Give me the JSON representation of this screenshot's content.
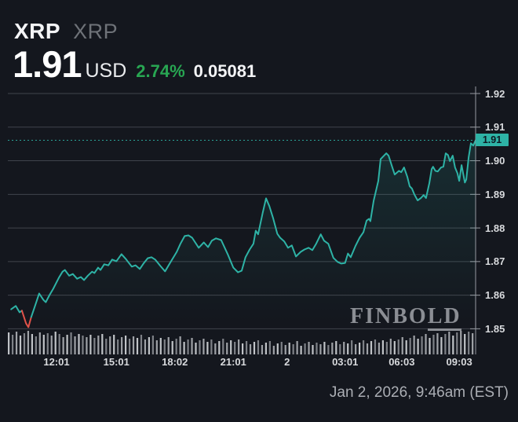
{
  "header": {
    "symbol": "XRP",
    "symbol_secondary": "XRP",
    "price": "1.91",
    "currency": "USD",
    "change_pct": "2.74%",
    "change_abs": "0.05081"
  },
  "watermark": {
    "part1": "FINBO",
    "part2": "LD"
  },
  "footer": {
    "timestamp": "Jan 2, 2026, 9:46am (EST)"
  },
  "colors": {
    "background": "#14171e",
    "gridline": "#40444c",
    "axis_line": "#969aa1",
    "tick_text": "#d8dadd",
    "up_green": "#28a652",
    "line_teal": "#2eb3a6",
    "down_red": "#e05249",
    "tag_text": "#0f1822",
    "fill_teal": "rgba(46,179,166,0.15)"
  },
  "chart_data": {
    "type": "line",
    "title": "XRP/USD 24-hour price",
    "ylim": [
      1.85,
      1.92
    ],
    "grid": true,
    "legend": "none",
    "y_ticks": [
      {
        "label": "1.92",
        "v": 1.92
      },
      {
        "label": "1.91",
        "v": 1.91
      },
      {
        "label": "1.90",
        "v": 1.9
      },
      {
        "label": "1.89",
        "v": 1.89
      },
      {
        "label": "1.88",
        "v": 1.88
      },
      {
        "label": "1.87",
        "v": 1.87
      },
      {
        "label": "1.86",
        "v": 1.86
      },
      {
        "label": "1.85",
        "v": 1.85
      }
    ],
    "x_ticks": [
      {
        "label": "12:01",
        "f": 0.104
      },
      {
        "label": "15:01",
        "f": 0.232
      },
      {
        "label": "18:02",
        "f": 0.357
      },
      {
        "label": "21:01",
        "f": 0.482
      },
      {
        "label": "2",
        "f": 0.597
      },
      {
        "label": "03:01",
        "f": 0.721
      },
      {
        "label": "06:03",
        "f": 0.842
      },
      {
        "label": "09:03",
        "f": 0.965
      }
    ],
    "current_price": {
      "label": "1.91",
      "v": 1.9061
    },
    "red_segment": [
      3,
      6
    ],
    "points": [
      [
        0.007,
        1.8558
      ],
      [
        0.017,
        1.8568
      ],
      [
        0.025,
        1.8549
      ],
      [
        0.03,
        1.8554
      ],
      [
        0.039,
        1.8516
      ],
      [
        0.044,
        1.8505
      ],
      [
        0.05,
        1.8535
      ],
      [
        0.059,
        1.8572
      ],
      [
        0.067,
        1.8605
      ],
      [
        0.076,
        1.8586
      ],
      [
        0.081,
        1.8579
      ],
      [
        0.089,
        1.86
      ],
      [
        0.097,
        1.8619
      ],
      [
        0.109,
        1.8652
      ],
      [
        0.117,
        1.867
      ],
      [
        0.122,
        1.8675
      ],
      [
        0.131,
        1.8658
      ],
      [
        0.139,
        1.8663
      ],
      [
        0.148,
        1.8649
      ],
      [
        0.156,
        1.8654
      ],
      [
        0.163,
        1.8645
      ],
      [
        0.171,
        1.8658
      ],
      [
        0.18,
        1.867
      ],
      [
        0.185,
        1.8666
      ],
      [
        0.193,
        1.8682
      ],
      [
        0.198,
        1.8675
      ],
      [
        0.206,
        1.8692
      ],
      [
        0.215,
        1.8689
      ],
      [
        0.223,
        1.8706
      ],
      [
        0.232,
        1.8701
      ],
      [
        0.243,
        1.8722
      ],
      [
        0.252,
        1.8708
      ],
      [
        0.257,
        1.8699
      ],
      [
        0.265,
        1.8685
      ],
      [
        0.273,
        1.8689
      ],
      [
        0.282,
        1.8678
      ],
      [
        0.29,
        1.8694
      ],
      [
        0.299,
        1.871
      ],
      [
        0.307,
        1.8713
      ],
      [
        0.315,
        1.8706
      ],
      [
        0.326,
        1.8687
      ],
      [
        0.336,
        1.8671
      ],
      [
        0.349,
        1.8701
      ],
      [
        0.361,
        1.8729
      ],
      [
        0.369,
        1.8753
      ],
      [
        0.378,
        1.8776
      ],
      [
        0.386,
        1.8778
      ],
      [
        0.394,
        1.8771
      ],
      [
        0.408,
        1.8741
      ],
      [
        0.419,
        1.8757
      ],
      [
        0.428,
        1.8743
      ],
      [
        0.436,
        1.8762
      ],
      [
        0.445,
        1.8769
      ],
      [
        0.456,
        1.8764
      ],
      [
        0.47,
        1.8722
      ],
      [
        0.482,
        1.8682
      ],
      [
        0.492,
        1.8668
      ],
      [
        0.5,
        1.8673
      ],
      [
        0.508,
        1.8713
      ],
      [
        0.517,
        1.8736
      ],
      [
        0.525,
        1.8753
      ],
      [
        0.53,
        1.8792
      ],
      [
        0.535,
        1.8781
      ],
      [
        0.545,
        1.8846
      ],
      [
        0.552,
        1.8888
      ],
      [
        0.559,
        1.8865
      ],
      [
        0.567,
        1.883
      ],
      [
        0.576,
        1.8783
      ],
      [
        0.582,
        1.8771
      ],
      [
        0.591,
        1.876
      ],
      [
        0.599,
        1.8741
      ],
      [
        0.607,
        1.8748
      ],
      [
        0.616,
        1.8715
      ],
      [
        0.626,
        1.8729
      ],
      [
        0.634,
        1.8736
      ],
      [
        0.643,
        1.8741
      ],
      [
        0.651,
        1.8734
      ],
      [
        0.659,
        1.8753
      ],
      [
        0.669,
        1.8781
      ],
      [
        0.676,
        1.8762
      ],
      [
        0.685,
        1.8753
      ],
      [
        0.696,
        1.8711
      ],
      [
        0.705,
        1.8699
      ],
      [
        0.713,
        1.8694
      ],
      [
        0.721,
        1.8696
      ],
      [
        0.727,
        1.8724
      ],
      [
        0.733,
        1.8713
      ],
      [
        0.743,
        1.8746
      ],
      [
        0.752,
        1.8771
      ],
      [
        0.76,
        1.8787
      ],
      [
        0.767,
        1.8822
      ],
      [
        0.772,
        1.8827
      ],
      [
        0.775,
        1.882
      ],
      [
        0.782,
        1.8881
      ],
      [
        0.792,
        1.894
      ],
      [
        0.797,
        1.9005
      ],
      [
        0.809,
        1.9022
      ],
      [
        0.814,
        1.9015
      ],
      [
        0.822,
        1.898
      ],
      [
        0.827,
        1.8959
      ],
      [
        0.836,
        1.897
      ],
      [
        0.841,
        1.8966
      ],
      [
        0.847,
        1.898
      ],
      [
        0.854,
        1.8952
      ],
      [
        0.859,
        1.8924
      ],
      [
        0.864,
        1.8917
      ],
      [
        0.869,
        1.89
      ],
      [
        0.876,
        1.8882
      ],
      [
        0.883,
        1.8889
      ],
      [
        0.889,
        1.8898
      ],
      [
        0.894,
        1.8889
      ],
      [
        0.901,
        1.8933
      ],
      [
        0.906,
        1.8975
      ],
      [
        0.909,
        1.8982
      ],
      [
        0.914,
        1.897
      ],
      [
        0.919,
        1.8968
      ],
      [
        0.926,
        1.898
      ],
      [
        0.931,
        1.8982
      ],
      [
        0.936,
        1.9022
      ],
      [
        0.941,
        1.9017
      ],
      [
        0.945,
        1.8999
      ],
      [
        0.951,
        1.9015
      ],
      [
        0.956,
        1.898
      ],
      [
        0.961,
        1.8963
      ],
      [
        0.965,
        1.894
      ],
      [
        0.97,
        1.8987
      ],
      [
        0.977,
        1.8935
      ],
      [
        0.98,
        1.8944
      ],
      [
        0.985,
        1.901
      ],
      [
        0.99,
        1.9052
      ],
      [
        0.995,
        1.9045
      ],
      [
        1.0,
        1.9061
      ]
    ],
    "volume": {
      "heights": [
        28,
        25,
        29,
        24,
        27,
        30,
        26,
        23,
        28,
        25,
        27,
        24,
        29,
        26,
        22,
        25,
        28,
        23,
        26,
        24,
        22,
        25,
        21,
        24,
        26,
        20,
        23,
        25,
        19,
        22,
        24,
        20,
        23,
        21,
        25,
        19,
        22,
        24,
        18,
        21,
        19,
        22,
        17,
        20,
        23,
        16,
        19,
        21,
        15,
        18,
        20,
        16,
        19,
        14,
        17,
        20,
        15,
        18,
        16,
        19,
        14,
        17,
        13,
        16,
        18,
        12,
        15,
        17,
        11,
        14,
        16,
        12,
        15,
        13,
        17,
        11,
        14,
        16,
        12,
        15,
        13,
        16,
        12,
        15,
        17,
        13,
        16,
        14,
        18,
        13,
        15,
        18,
        14,
        17,
        19,
        15,
        18,
        16,
        20,
        17,
        19,
        22,
        18,
        21,
        24,
        20,
        23,
        26,
        21,
        25,
        27,
        22,
        26,
        29,
        24,
        28,
        30,
        26,
        29,
        27
      ],
      "bar_colors": [
        "#c0c3c7",
        "#7e8187",
        "#9fa2a7"
      ]
    }
  }
}
